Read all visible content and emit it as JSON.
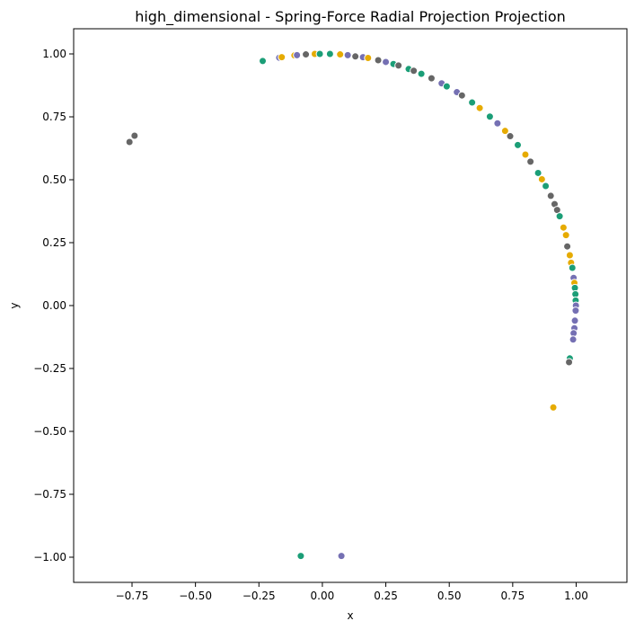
{
  "chart_data": {
    "type": "scatter",
    "title": "high_dimensional - Spring-Force Radial Projection Projection",
    "xlabel": "x",
    "ylabel": "y",
    "xlim": [
      -0.98,
      1.2
    ],
    "ylim": [
      -1.1,
      1.1
    ],
    "grid": false,
    "legend": "none",
    "x_ticks": [
      {
        "value": -0.75,
        "label": "−0.75"
      },
      {
        "value": -0.5,
        "label": "−0.50"
      },
      {
        "value": -0.25,
        "label": "−0.25"
      },
      {
        "value": 0.0,
        "label": "0.00"
      },
      {
        "value": 0.25,
        "label": "0.25"
      },
      {
        "value": 0.5,
        "label": "0.50"
      },
      {
        "value": 0.75,
        "label": "0.75"
      },
      {
        "value": 1.0,
        "label": "1.00"
      }
    ],
    "y_ticks": [
      {
        "value": 1.0,
        "label": "1.00"
      },
      {
        "value": 0.75,
        "label": "0.75"
      },
      {
        "value": 0.5,
        "label": "0.50"
      },
      {
        "value": 0.25,
        "label": "0.25"
      },
      {
        "value": 0.0,
        "label": "0.00"
      },
      {
        "value": -0.25,
        "label": "−0.25"
      },
      {
        "value": -0.5,
        "label": "−0.50"
      },
      {
        "value": -0.75,
        "label": "−0.75"
      },
      {
        "value": -1.0,
        "label": "−1.00"
      }
    ],
    "colors": {
      "teal": "#1b9e77",
      "gold": "#e6ab02",
      "purple": "#7570b3",
      "gray": "#666666"
    },
    "arc_points": {
      "comment_free": true,
      "colors": [
        "teal",
        "gold",
        "purple",
        "gray",
        "gold",
        "gray",
        "teal",
        "purple",
        "gold",
        "gray",
        "teal",
        "gold",
        "purple",
        "gray",
        "teal",
        "gold",
        "gray",
        "purple",
        "teal",
        "gold"
      ],
      "angles_deg": [
        103.8,
        102,
        100,
        98.5,
        96,
        94,
        92,
        90,
        88,
        86,
        84,
        82,
        80,
        78,
        76,
        75,
        73,
        71,
        69,
        67,
        65,
        63,
        61,
        59,
        57,
        55,
        53,
        51,
        49,
        47,
        45,
        43,
        41,
        39,
        37,
        35,
        33,
        31,
        29,
        27,
        25.5,
        24,
        22,
        20,
        18,
        16,
        15,
        14,
        12,
        10,
        8,
        6.5,
        5,
        3.5,
        2,
        1,
        0,
        -1,
        -2,
        -3.5,
        -5,
        -6.5,
        -7.5,
        -8.5,
        -12.5
      ]
    },
    "points": [
      {
        "x": -0.235,
        "y": 0.972,
        "color": "teal"
      },
      {
        "x": -0.17,
        "y": 0.985,
        "color": "purple"
      },
      {
        "x": -0.16,
        "y": 0.987,
        "color": "gold"
      },
      {
        "x": -0.11,
        "y": 0.994,
        "color": "gold"
      },
      {
        "x": -0.1,
        "y": 0.995,
        "color": "purple"
      },
      {
        "x": -0.065,
        "y": 0.998,
        "color": "gray"
      },
      {
        "x": -0.03,
        "y": 1.0,
        "color": "gold"
      },
      {
        "x": -0.01,
        "y": 1.0,
        "color": "teal"
      },
      {
        "x": 0.03,
        "y": 1.0,
        "color": "teal"
      },
      {
        "x": 0.07,
        "y": 0.998,
        "color": "gold"
      },
      {
        "x": 0.1,
        "y": 0.995,
        "color": "purple"
      },
      {
        "x": 0.13,
        "y": 0.99,
        "color": "gray"
      },
      {
        "x": 0.16,
        "y": 0.987,
        "color": "purple"
      },
      {
        "x": 0.18,
        "y": 0.984,
        "color": "gold"
      },
      {
        "x": 0.22,
        "y": 0.975,
        "color": "gray"
      },
      {
        "x": 0.25,
        "y": 0.968,
        "color": "purple"
      },
      {
        "x": 0.28,
        "y": 0.96,
        "color": "teal"
      },
      {
        "x": 0.3,
        "y": 0.954,
        "color": "gray"
      },
      {
        "x": 0.34,
        "y": 0.94,
        "color": "teal"
      },
      {
        "x": 0.36,
        "y": 0.933,
        "color": "gray"
      },
      {
        "x": 0.39,
        "y": 0.921,
        "color": "teal"
      },
      {
        "x": 0.43,
        "y": 0.903,
        "color": "gray"
      },
      {
        "x": 0.47,
        "y": 0.883,
        "color": "purple"
      },
      {
        "x": 0.49,
        "y": 0.871,
        "color": "teal"
      },
      {
        "x": 0.53,
        "y": 0.848,
        "color": "purple"
      },
      {
        "x": 0.55,
        "y": 0.835,
        "color": "gray"
      },
      {
        "x": 0.59,
        "y": 0.807,
        "color": "teal"
      },
      {
        "x": 0.62,
        "y": 0.785,
        "color": "gold"
      },
      {
        "x": 0.66,
        "y": 0.751,
        "color": "teal"
      },
      {
        "x": 0.69,
        "y": 0.724,
        "color": "purple"
      },
      {
        "x": 0.72,
        "y": 0.694,
        "color": "gold"
      },
      {
        "x": 0.74,
        "y": 0.673,
        "color": "gray"
      },
      {
        "x": 0.77,
        "y": 0.638,
        "color": "teal"
      },
      {
        "x": 0.8,
        "y": 0.6,
        "color": "gold"
      },
      {
        "x": 0.82,
        "y": 0.572,
        "color": "gray"
      },
      {
        "x": 0.85,
        "y": 0.527,
        "color": "teal"
      },
      {
        "x": 0.865,
        "y": 0.502,
        "color": "gold"
      },
      {
        "x": 0.88,
        "y": 0.475,
        "color": "teal"
      },
      {
        "x": 0.9,
        "y": 0.436,
        "color": "gray"
      },
      {
        "x": 0.915,
        "y": 0.403,
        "color": "gray"
      },
      {
        "x": 0.925,
        "y": 0.38,
        "color": "gray"
      },
      {
        "x": 0.935,
        "y": 0.355,
        "color": "teal"
      },
      {
        "x": 0.95,
        "y": 0.31,
        "color": "gold"
      },
      {
        "x": 0.96,
        "y": 0.28,
        "color": "gold"
      },
      {
        "x": 0.965,
        "y": 0.235,
        "color": "gray"
      },
      {
        "x": 0.975,
        "y": 0.2,
        "color": "gold"
      },
      {
        "x": 0.98,
        "y": 0.17,
        "color": "gold"
      },
      {
        "x": 0.985,
        "y": 0.15,
        "color": "teal"
      },
      {
        "x": 0.99,
        "y": 0.11,
        "color": "purple"
      },
      {
        "x": 0.993,
        "y": 0.09,
        "color": "gold"
      },
      {
        "x": 0.995,
        "y": 0.07,
        "color": "teal"
      },
      {
        "x": 0.997,
        "y": 0.045,
        "color": "teal"
      },
      {
        "x": 0.998,
        "y": 0.02,
        "color": "teal"
      },
      {
        "x": 0.999,
        "y": 0.0,
        "color": "purple"
      },
      {
        "x": 0.998,
        "y": -0.02,
        "color": "purple"
      },
      {
        "x": 0.995,
        "y": -0.06,
        "color": "purple"
      },
      {
        "x": 0.993,
        "y": -0.09,
        "color": "purple"
      },
      {
        "x": 0.99,
        "y": -0.11,
        "color": "purple"
      },
      {
        "x": 0.988,
        "y": -0.135,
        "color": "purple"
      },
      {
        "x": 0.975,
        "y": -0.21,
        "color": "teal"
      },
      {
        "x": 0.972,
        "y": -0.225,
        "color": "gray"
      },
      {
        "x": 0.91,
        "y": -0.405,
        "color": "gold"
      },
      {
        "x": -0.76,
        "y": 0.65,
        "color": "gray"
      },
      {
        "x": -0.74,
        "y": 0.675,
        "color": "gray"
      },
      {
        "x": -0.085,
        "y": -0.995,
        "color": "teal"
      },
      {
        "x": 0.075,
        "y": -0.995,
        "color": "purple"
      }
    ]
  }
}
